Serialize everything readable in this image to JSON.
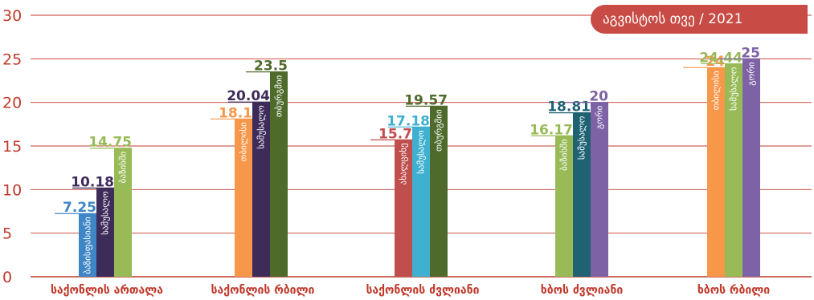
{
  "chart_data": {
    "type": "bar",
    "title": "აგვისტოს თვე / 2021",
    "ylim": [
      0,
      30
    ],
    "y_ticks": [
      "0",
      "5",
      "10",
      "15",
      "20",
      "25",
      "30"
    ],
    "grid": true,
    "categories": [
      {
        "label": "საქონლის ართალა",
        "bars": [
          {
            "name": "ბაზისფასიანი",
            "value": 7.25,
            "label": "7.25",
            "color": "#3f86c6"
          },
          {
            "name": "სამუსალო",
            "value": 10.18,
            "label": "10.18",
            "color": "#3d2b5a"
          },
          {
            "name": "ბაზისში",
            "value": 14.75,
            "label": "14.75",
            "color": "#98bb58"
          }
        ]
      },
      {
        "label": "საქონლის რბილი",
        "bars": [
          {
            "name": "თბილისი",
            "value": 18.1,
            "label": "18.1",
            "color": "#f7974a"
          },
          {
            "name": "სამუსალო",
            "value": 20.04,
            "label": "20.04",
            "color": "#3d2b5a"
          },
          {
            "name": "თბურგმიი",
            "value": 23.5,
            "label": "23.5",
            "color": "#4f6b2c"
          }
        ]
      },
      {
        "label": "საქონლის ძვლიანი",
        "bars": [
          {
            "name": "ახალციხე",
            "value": 15.7,
            "label": "15.7",
            "color": "#bf4e4d"
          },
          {
            "name": "სამუსალო",
            "value": 17.18,
            "label": "17.18",
            "color": "#3fb0cf"
          },
          {
            "name": "თბურგმიი",
            "value": 19.57,
            "label": "19.57",
            "color": "#4f6b2c"
          }
        ]
      },
      {
        "label": "ხბოს ძვლიანი",
        "bars": [
          {
            "name": "ბაზისში",
            "value": 16.17,
            "label": "16.17",
            "color": "#98bb58"
          },
          {
            "name": "სამუსალო",
            "value": 18.81,
            "label": "18.81",
            "color": "#1f6272"
          },
          {
            "name": "გორი",
            "value": 20,
            "label": "20",
            "color": "#7d62a5"
          }
        ]
      },
      {
        "label": "ხბოს რბილი",
        "bars": [
          {
            "name": "თბილისი",
            "value": 24,
            "label": "24",
            "color": "#f7974a"
          },
          {
            "name": "სამუსალო",
            "value": 24.44,
            "label": "24.44",
            "color": "#98bb58"
          },
          {
            "name": "გორი",
            "value": 25,
            "label": "25",
            "color": "#7d62a5"
          }
        ]
      }
    ]
  },
  "colors": {
    "accent": "#c84b45",
    "tick_label": "#c0392b",
    "gridline": "#c0392b"
  }
}
